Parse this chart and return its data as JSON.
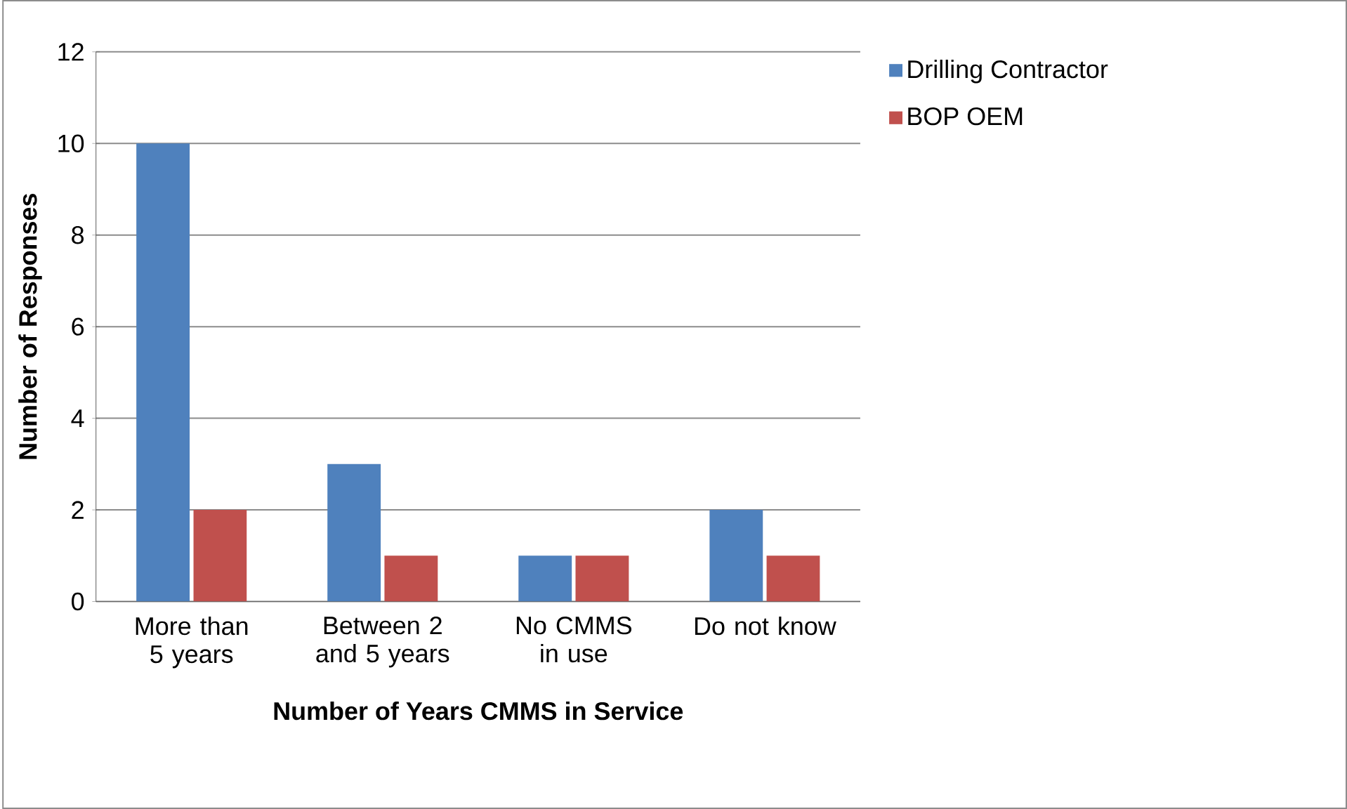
{
  "chart_data": {
    "type": "bar",
    "xlabel": "Number of Years CMMS in Service",
    "ylabel": "Number of Responses",
    "categories": [
      "More than 5 years",
      "Between 2 and 5 years",
      "No CMMS in use",
      "Do not know"
    ],
    "series": [
      {
        "name": "Drilling Contractor",
        "color": "#4f81bd",
        "values": [
          10,
          3,
          1,
          2
        ]
      },
      {
        "name": "BOP OEM",
        "color": "#c0504d",
        "values": [
          2,
          1,
          1,
          1
        ]
      }
    ],
    "ylim": [
      0,
      12
    ],
    "yticks": [
      0,
      2,
      4,
      6,
      8,
      10,
      12
    ],
    "grid": "y",
    "legend": "top right"
  }
}
